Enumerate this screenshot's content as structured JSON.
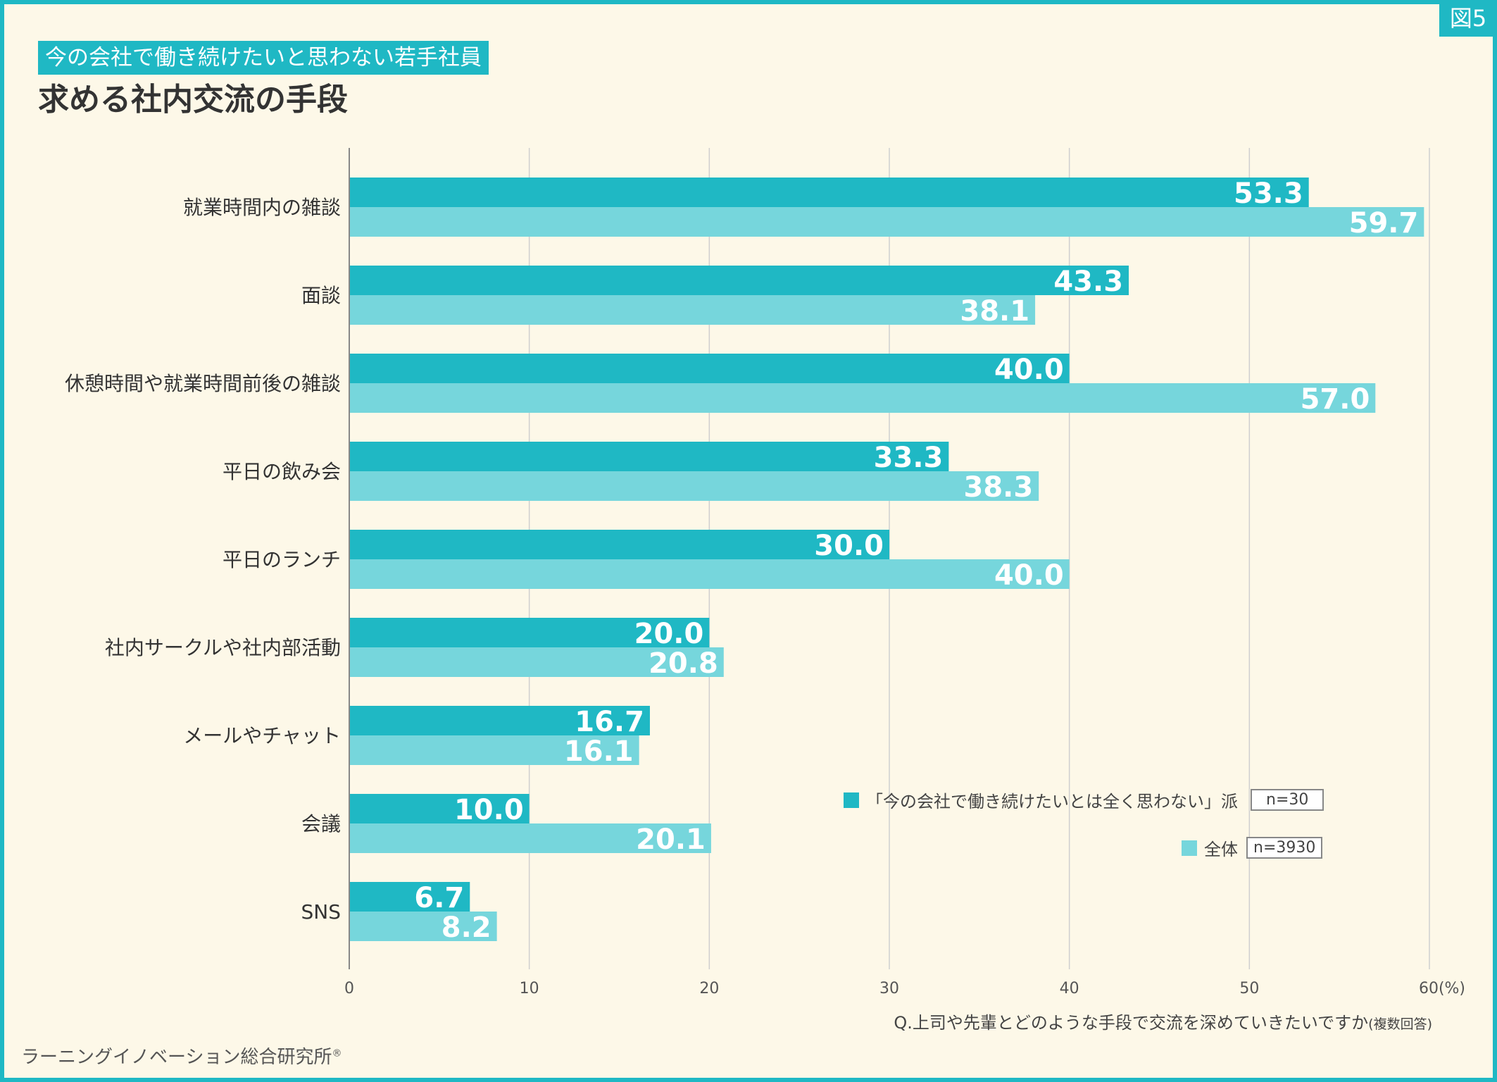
{
  "badge": "図5",
  "subtitle": "今の会社で働き続けたいと思わない若手社員",
  "title": "求める社内交流の手段",
  "chart_data": {
    "type": "bar",
    "orientation": "horizontal",
    "categories": [
      "就業時間内の雑談",
      "面談",
      "休憩時間や就業時間前後の雑談",
      "平日の飲み会",
      "平日のランチ",
      "社内サークルや社内部活動",
      "メールやチャット",
      "会議",
      "SNS"
    ],
    "series": [
      {
        "name": "「今の会社で働き続けたいとは全く思わない」派",
        "n_label": "n=30",
        "color": "#1fb8c4",
        "values": [
          53.3,
          43.3,
          40.0,
          33.3,
          30.0,
          20.0,
          16.7,
          10.0,
          6.7
        ]
      },
      {
        "name": "全体",
        "n_label": "n=3930",
        "color": "#76d6dc",
        "values": [
          59.7,
          38.1,
          57.0,
          38.3,
          40.0,
          20.8,
          16.1,
          20.1,
          8.2
        ]
      }
    ],
    "xlim": [
      0,
      60
    ],
    "xticks": [
      "0",
      "10",
      "20",
      "30",
      "40",
      "50",
      "60(%)"
    ],
    "grid": true,
    "legend_position": "bottom-right"
  },
  "question_main": "Q.上司や先輩とどのような手段で交流を深めていきたいですか",
  "question_note": "(複数回答)",
  "source": "ラーニングイノベーション総合研究所",
  "source_mark": "®"
}
